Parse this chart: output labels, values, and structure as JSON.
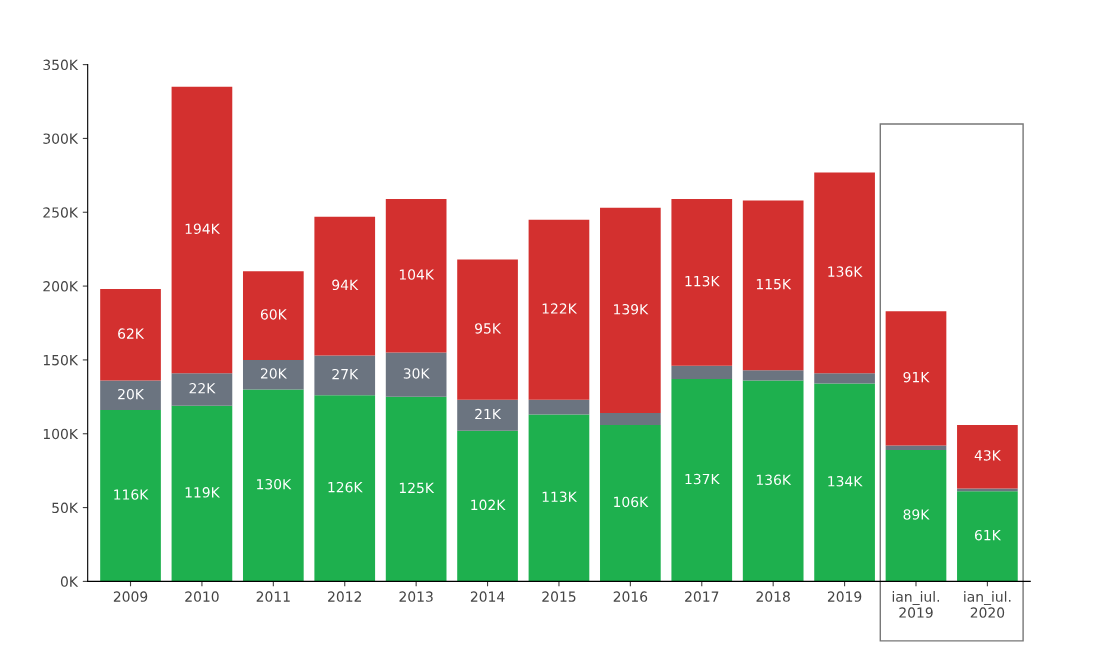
{
  "chart_data": {
    "type": "bar",
    "stacked": true,
    "categories": [
      "2009",
      "2010",
      "2011",
      "2012",
      "2013",
      "2014",
      "2015",
      "2016",
      "2017",
      "2018",
      "2019",
      "ian_iul.\n2019",
      "ian_iul.\n2020"
    ],
    "series": [
      {
        "color": "#1eb04e",
        "values": [
          116,
          119,
          130,
          126,
          125,
          102,
          113,
          106,
          137,
          136,
          134,
          89,
          61
        ],
        "value_labels": [
          "116K",
          "119K",
          "130K",
          "126K",
          "125K",
          "102K",
          "113K",
          "106K",
          "137K",
          "136K",
          "134K",
          "89K",
          "61K"
        ]
      },
      {
        "color": "#6b7480",
        "values": [
          20,
          22,
          20,
          27,
          30,
          21,
          10,
          8,
          9,
          7,
          7,
          3,
          2
        ],
        "value_labels": [
          "20K",
          "22K",
          "20K",
          "27K",
          "30K",
          "21K",
          null,
          null,
          null,
          null,
          null,
          null,
          null
        ]
      },
      {
        "color": "#d3302f",
        "values": [
          62,
          194,
          60,
          94,
          104,
          95,
          122,
          139,
          113,
          115,
          136,
          91,
          43
        ],
        "value_labels": [
          "62K",
          "194K",
          "60K",
          "94K",
          "104K",
          "95K",
          "122K",
          "139K",
          "113K",
          "115K",
          "136K",
          "91K",
          "43K"
        ]
      }
    ],
    "ylim": [
      0,
      350
    ],
    "yticks": [
      {
        "value": 0,
        "label": "0K"
      },
      {
        "value": 50,
        "label": "50K"
      },
      {
        "value": 100,
        "label": "100K"
      },
      {
        "value": 150,
        "label": "150K"
      },
      {
        "value": 200,
        "label": "200K"
      },
      {
        "value": 250,
        "label": "250K"
      },
      {
        "value": 300,
        "label": "300K"
      },
      {
        "value": 350,
        "label": "350K"
      }
    ],
    "grid": false,
    "legend": false
  }
}
